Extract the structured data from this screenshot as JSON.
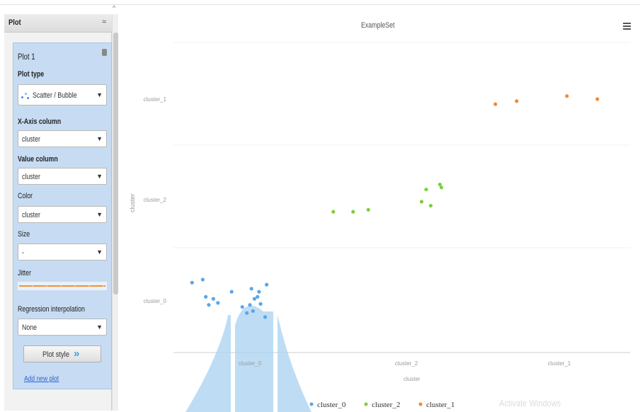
{
  "panel": {
    "title": "Plot",
    "collapse_glyph": "≈",
    "scroll_up_glyph": "^",
    "plot_card": {
      "name": "Plot 1",
      "plot_type_label": "Plot type",
      "plot_type_value": "Scatter / Bubble",
      "x_axis_label": "X-Axis column",
      "x_axis_value": "cluster",
      "value_label": "Value column",
      "value_value": "cluster",
      "color_label": "Color",
      "color_value": "cluster",
      "size_label": "Size",
      "size_value": "-",
      "jitter_label": "Jitter",
      "regression_label": "Regression interpolation",
      "regression_value": "None",
      "plot_style_label": "Plot style",
      "plot_style_icon": "double-chevron-right-icon"
    },
    "add_new_plot": "Add new plot"
  },
  "chart": {
    "menu_icon": "hamburger-menu-icon",
    "watermark": "Activate Windows"
  },
  "chart_data": {
    "type": "scatter",
    "title": "ExampleSet",
    "xlabel": "cluster",
    "ylabel": "cluster",
    "x_categories": [
      "cluster_0",
      "cluster_2",
      "cluster_1"
    ],
    "y_categories": [
      "cluster_0",
      "cluster_2",
      "cluster_1"
    ],
    "grid": true,
    "legend_position": "bottom",
    "series": [
      {
        "name": "cluster_0",
        "color": "#5aa6e8",
        "points": [
          {
            "x": -0.38,
            "y": 0.18
          },
          {
            "x": -0.31,
            "y": 0.21
          },
          {
            "x": -0.29,
            "y": 0.04
          },
          {
            "x": -0.27,
            "y": -0.04
          },
          {
            "x": -0.24,
            "y": 0.02
          },
          {
            "x": -0.21,
            "y": -0.02
          },
          {
            "x": -0.02,
            "y": -0.12
          },
          {
            "x": -0.12,
            "y": 0.09
          },
          {
            "x": -0.05,
            "y": -0.06
          },
          {
            "x": 0.0,
            "y": -0.04
          },
          {
            "x": 0.01,
            "y": 0.12
          },
          {
            "x": 0.03,
            "y": 0.02
          },
          {
            "x": 0.05,
            "y": 0.04
          },
          {
            "x": 0.06,
            "y": 0.09
          },
          {
            "x": 0.02,
            "y": -0.1
          },
          {
            "x": 0.1,
            "y": -0.16
          },
          {
            "x": 0.11,
            "y": 0.16
          },
          {
            "x": 0.07,
            "y": -0.03
          }
        ]
      },
      {
        "name": "cluster_2",
        "color": "#7ccf3e",
        "points": [
          {
            "x": -0.48,
            "y": -0.12
          },
          {
            "x": -0.35,
            "y": -0.12
          },
          {
            "x": -0.25,
            "y": -0.1
          },
          {
            "x": 0.1,
            "y": -0.02
          },
          {
            "x": 0.13,
            "y": 0.1
          },
          {
            "x": 0.16,
            "y": -0.06
          },
          {
            "x": 0.22,
            "y": 0.15
          },
          {
            "x": 0.23,
            "y": 0.12
          }
        ]
      },
      {
        "name": "cluster_1",
        "color": "#f08a3a",
        "points": [
          {
            "x": -0.42,
            "y": -0.05
          },
          {
            "x": -0.28,
            "y": -0.02
          },
          {
            "x": 0.05,
            "y": 0.03
          },
          {
            "x": 0.25,
            "y": 0.0
          }
        ]
      }
    ]
  }
}
